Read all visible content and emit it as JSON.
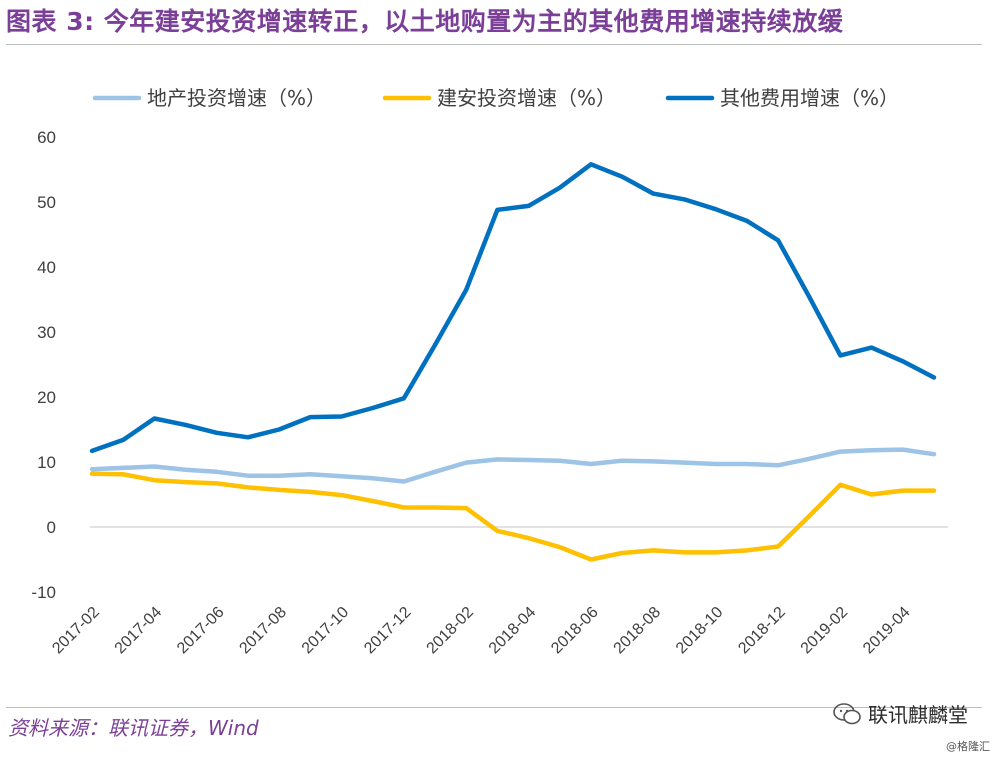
{
  "header": {
    "title": "图表 3: 今年建安投资增速转正，以土地购置为主的其他费用增速持续放缓"
  },
  "footer": {
    "source": "资料来源：联讯证券，Wind",
    "watermark": "联讯麒麟堂",
    "watermark2": "@格隆汇"
  },
  "colors": {
    "title": "#7B3F98",
    "land": "#9DC3E6",
    "construction": "#FFC000",
    "other": "#0070C0"
  },
  "chart_data": {
    "type": "line",
    "title": "",
    "xlabel": "",
    "ylabel": "",
    "ylim": [
      -10,
      60
    ],
    "yticks": [
      -10,
      0,
      10,
      20,
      30,
      40,
      50,
      60
    ],
    "grid": false,
    "legend_position": "top",
    "x": [
      "2017-02",
      "2017-03",
      "2017-04",
      "2017-05",
      "2017-06",
      "2017-07",
      "2017-08",
      "2017-09",
      "2017-10",
      "2017-11",
      "2017-12",
      "2018-01",
      "2018-02",
      "2018-03",
      "2018-04",
      "2018-05",
      "2018-06",
      "2018-07",
      "2018-08",
      "2018-09",
      "2018-10",
      "2018-11",
      "2018-12",
      "2019-01",
      "2019-02",
      "2019-03",
      "2019-04",
      "2019-05"
    ],
    "xtick_labels": [
      "2017-02",
      "2017-04",
      "2017-06",
      "2017-08",
      "2017-10",
      "2017-12",
      "2018-02",
      "2018-04",
      "2018-06",
      "2018-08",
      "2018-10",
      "2018-12",
      "2019-02",
      "2019-04"
    ],
    "series": [
      {
        "name": "地产投资增速（%）",
        "color": "#9DC3E6",
        "values": [
          8.9,
          9.1,
          9.3,
          8.8,
          8.5,
          7.9,
          7.9,
          8.1,
          7.8,
          7.5,
          7.0,
          8.5,
          9.9,
          10.4,
          10.3,
          10.2,
          9.7,
          10.2,
          10.1,
          9.9,
          9.7,
          9.7,
          9.5,
          10.5,
          11.6,
          11.8,
          11.9,
          11.2
        ]
      },
      {
        "name": "建安投资增速（%）",
        "color": "#FFC000",
        "values": [
          8.2,
          8.1,
          7.2,
          6.9,
          6.7,
          6.1,
          5.7,
          5.4,
          4.9,
          4.0,
          3.0,
          3.0,
          2.9,
          -0.6,
          -1.7,
          -3.1,
          -5.0,
          -4.0,
          -3.6,
          -3.9,
          -3.9,
          -3.6,
          -3.0,
          1.7,
          6.5,
          5.0,
          5.6,
          5.6
        ]
      },
      {
        "name": "其他费用增速（%）",
        "color": "#0070C0",
        "values": [
          11.7,
          13.4,
          16.7,
          15.7,
          14.5,
          13.8,
          15.0,
          16.9,
          17.0,
          18.3,
          19.8,
          28.0,
          36.5,
          48.8,
          49.4,
          52.2,
          55.8,
          53.9,
          51.3,
          50.4,
          48.9,
          47.1,
          44.1,
          35.4,
          26.4,
          27.6,
          25.5,
          23.0
        ]
      }
    ]
  }
}
